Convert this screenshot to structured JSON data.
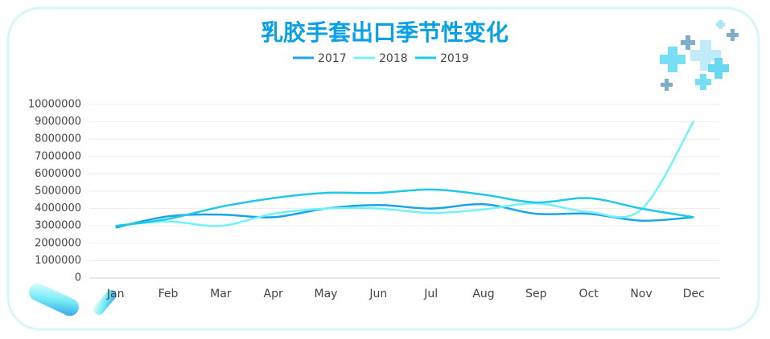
{
  "chart_data": {
    "type": "line",
    "title": "乳胶手套出口季节性变化",
    "categories": [
      "Jan",
      "Feb",
      "Mar",
      "Apr",
      "May",
      "Jun",
      "Jul",
      "Aug",
      "Sep",
      "Oct",
      "Nov",
      "Dec"
    ],
    "series": [
      {
        "name": "2017",
        "color": "#1aa3e8",
        "values": [
          2900000,
          3550000,
          3650000,
          3500000,
          4000000,
          4200000,
          4000000,
          4250000,
          3700000,
          3700000,
          3300000,
          3500000
        ]
      },
      {
        "name": "2018",
        "color": "#72f2f7",
        "values": [
          3000000,
          3250000,
          3000000,
          3700000,
          4000000,
          4000000,
          3750000,
          3950000,
          4300000,
          3800000,
          3950000,
          9050000
        ]
      },
      {
        "name": "2019",
        "color": "#1ec8ea",
        "values": [
          3000000,
          3400000,
          4100000,
          4600000,
          4900000,
          4900000,
          5100000,
          4800000,
          4350000,
          4600000,
          4000000,
          3500000
        ]
      }
    ],
    "ylim": [
      0,
      10000000
    ],
    "yticks": [
      0,
      1000000,
      2000000,
      3000000,
      4000000,
      5000000,
      6000000,
      7000000,
      8000000,
      9000000,
      10000000
    ],
    "grid": true,
    "smooth": true,
    "legend": "top"
  }
}
